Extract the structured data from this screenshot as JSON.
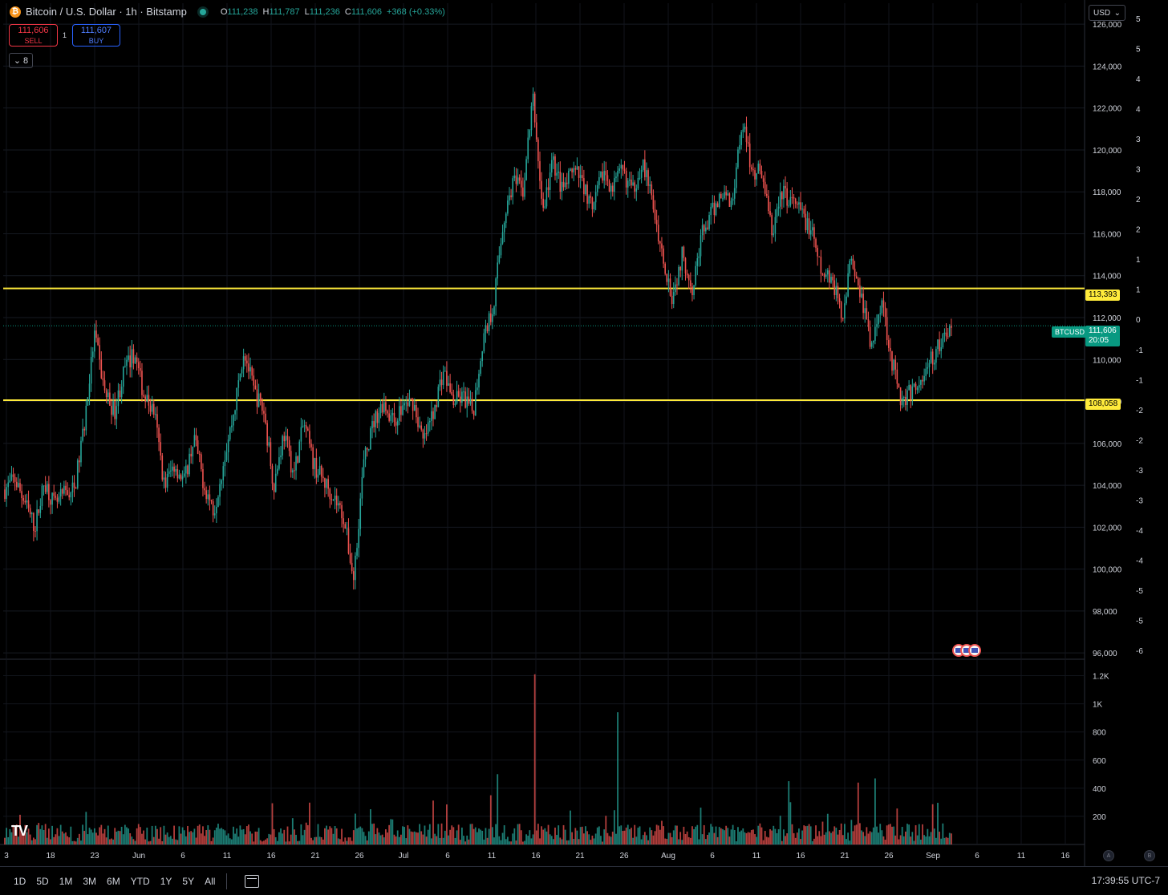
{
  "header": {
    "symbol_title": "Bitcoin / U.S. Dollar · 1h · Bitstamp",
    "coin_icon": "bitcoin-icon",
    "ohlc": {
      "o_label": "O",
      "o": "111,238",
      "h_label": "H",
      "h": "111,787",
      "l_label": "L",
      "l": "111,236",
      "c_label": "C",
      "c": "111,606",
      "change": "+368 (+0.33%)"
    }
  },
  "trade": {
    "sell_price": "111,606",
    "sell_label": "SELL",
    "spread": "1",
    "buy_price": "111,607",
    "buy_label": "BUY"
  },
  "indicators": {
    "collapsed_count": "8"
  },
  "currency": "USD",
  "price_tags": {
    "symbol": "BTCUSD",
    "last": "111,606",
    "countdown": "20:05",
    "level_high": "113,393",
    "level_low": "108,058"
  },
  "bottom": {
    "ranges": [
      "1D",
      "5D",
      "1M",
      "3M",
      "6M",
      "YTD",
      "1Y",
      "5Y",
      "All"
    ],
    "clock": "17:39:55 UTC-7",
    "logo": "TV"
  },
  "colors": {
    "up": "#26a69a",
    "down": "#ef5350",
    "level": "#ffeb3b",
    "last": "#089981",
    "bg": "#000000"
  },
  "chart_data": {
    "type": "candlestick",
    "price_axis": {
      "ticks": [
        96000,
        98000,
        100000,
        102000,
        104000,
        106000,
        108000,
        110000,
        112000,
        114000,
        116000,
        118000,
        120000,
        122000,
        124000,
        126000
      ],
      "labels": [
        "96,000",
        "98,000",
        "100,000",
        "102,000",
        "104,000",
        "106,000",
        "108,000",
        "110,000",
        "112,000",
        "114,000",
        "116,000",
        "118,000",
        "120,000",
        "122,000",
        "124,000",
        "126,000"
      ],
      "range": [
        95700,
        127000
      ]
    },
    "secondary_axis_labels": [
      "5",
      "5",
      "4",
      "4",
      "3",
      "3",
      "2",
      "2",
      "1",
      "1",
      "0",
      "-1",
      "-1",
      "-2",
      "-2",
      "-3",
      "-3",
      "-4",
      "-4",
      "-5",
      "-5",
      "-6"
    ],
    "volume_axis": {
      "labels": [
        "200",
        "400",
        "600",
        "800",
        "1K",
        "1.2K"
      ],
      "ticks": [
        200,
        400,
        600,
        800,
        1000,
        1200
      ],
      "max": 1300
    },
    "time_axis": {
      "labels": [
        "3",
        "18",
        "23",
        "Jun",
        "6",
        "11",
        "16",
        "21",
        "26",
        "Jul",
        "6",
        "11",
        "16",
        "21",
        "26",
        "Aug",
        "6",
        "11",
        "16",
        "21",
        "26",
        "Sep",
        "6",
        "11",
        "16"
      ]
    },
    "horizontal_levels": [
      113393,
      108058
    ],
    "last_price": 111606,
    "anchor_closes": [
      103800,
      104300,
      103200,
      102000,
      104200,
      103000,
      103600,
      103800,
      107000,
      111200,
      108500,
      107500,
      109500,
      110300,
      108200,
      107500,
      104000,
      105000,
      104200,
      106300,
      104000,
      102800,
      105300,
      107500,
      110500,
      108500,
      107500,
      104000,
      106500,
      104500,
      107000,
      105000,
      104200,
      103500,
      102500,
      99500,
      105000,
      107000,
      108000,
      107000,
      107800,
      108000,
      106000,
      107500,
      109500,
      108000,
      108200,
      107500,
      111000,
      112500,
      116500,
      118500,
      118000,
      122500,
      117000,
      119500,
      118000,
      119000,
      118500,
      117000,
      119000,
      118200,
      119000,
      118000,
      119500,
      117500,
      115000,
      113000,
      115000,
      113500,
      116000,
      117000,
      118000,
      117500,
      121500,
      119000,
      119000,
      116000,
      118000,
      117500,
      117000,
      116000,
      114000,
      114000,
      112000,
      115000,
      113000,
      110500,
      113000,
      110000,
      108000,
      108500,
      109000,
      110000,
      110800,
      111606
    ],
    "volume_spikes": [
      {
        "x": 666,
        "v": 1210
      },
      {
        "x": 771,
        "v": 940
      },
      {
        "x": 621,
        "v": 500
      },
      {
        "x": 612,
        "v": 350
      },
      {
        "x": 1091,
        "v": 470
      },
      {
        "x": 984,
        "v": 450
      },
      {
        "x": 1070,
        "v": 440
      }
    ]
  }
}
